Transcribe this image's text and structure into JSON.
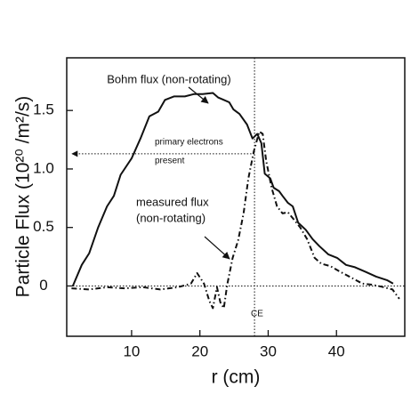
{
  "chart_data": {
    "type": "line",
    "xlabel": "r (cm)",
    "ylabel": "Particle Flux (10²⁰ /m²/s)",
    "xlim": [
      0.5,
      50
    ],
    "ylim": [
      -0.43,
      1.95
    ],
    "xticks": [
      10,
      20,
      30,
      40
    ],
    "yticks": [
      0,
      0.5,
      {
        "value": 1,
        "label": "1.0"
      },
      1.5
    ],
    "annotations": [
      "Bohm flux (non-rotating)",
      "primary electrons",
      "present",
      "measured flux",
      "(non-rotating)",
      "CE"
    ],
    "vline": 28,
    "hline": 0,
    "arrow_y": 1.13,
    "series": [
      {
        "color": "#111111",
        "style": "solid",
        "x": [
          1.4,
          2.7,
          3.8,
          5.1,
          6.4,
          7.4,
          8.4,
          10,
          11.3,
          12.6,
          13.9,
          14.9,
          16.2,
          17.8,
          19.1,
          20.4,
          21.9,
          22.7,
          23.5,
          24.3,
          24.9,
          25.8,
          26.9,
          27.7,
          28.4,
          29,
          29.5,
          30.3,
          30.8,
          31.6,
          32.1,
          32.9,
          33.6,
          34.4,
          35.5,
          36.5,
          37.5,
          38.8,
          40.1,
          41.4,
          42.7,
          44.3,
          45.8,
          47.4,
          48.3
        ],
        "values": [
          0,
          0.18,
          0.28,
          0.5,
          0.68,
          0.77,
          0.95,
          1.09,
          1.26,
          1.45,
          1.49,
          1.59,
          1.62,
          1.62,
          1.64,
          1.64,
          1.65,
          1.61,
          1.59,
          1.57,
          1.51,
          1.47,
          1.38,
          1.26,
          1.3,
          1.22,
          0.96,
          0.92,
          0.84,
          0.81,
          0.77,
          0.71,
          0.68,
          0.54,
          0.48,
          0.4,
          0.34,
          0.27,
          0.24,
          0.18,
          0.16,
          0.12,
          0.08,
          0.05,
          0.02
        ]
      },
      {
        "color": "#111111",
        "style": "dashed",
        "x": [
          1.2,
          3.8,
          6.4,
          9,
          11.6,
          14.2,
          16.8,
          18.7,
          19.6,
          20.6,
          21.4,
          21.9,
          22.5,
          23,
          23.5,
          24,
          24.8,
          25.6,
          26.4,
          27.1,
          27.9,
          28.7,
          29.2,
          29.7,
          30.5,
          31.3,
          32.1,
          32.9,
          33.6,
          34.7,
          35.7,
          36.8,
          37.8,
          39.1,
          40.6,
          42.2,
          43.8,
          45.3,
          46.9,
          48.2,
          49.2
        ],
        "values": [
          -0.02,
          -0.03,
          -0.01,
          -0.02,
          -0.01,
          -0.03,
          -0.01,
          0.02,
          0.11,
          0.02,
          -0.13,
          -0.19,
          -0.01,
          -0.14,
          -0.19,
          0.01,
          0.24,
          0.39,
          0.62,
          0.92,
          1.15,
          1.32,
          1.3,
          1.07,
          0.84,
          0.68,
          0.62,
          0.63,
          0.58,
          0.5,
          0.4,
          0.24,
          0.19,
          0.17,
          0.12,
          0.07,
          0.02,
          0.01,
          -0.01,
          -0.03,
          -0.11
        ]
      }
    ]
  }
}
